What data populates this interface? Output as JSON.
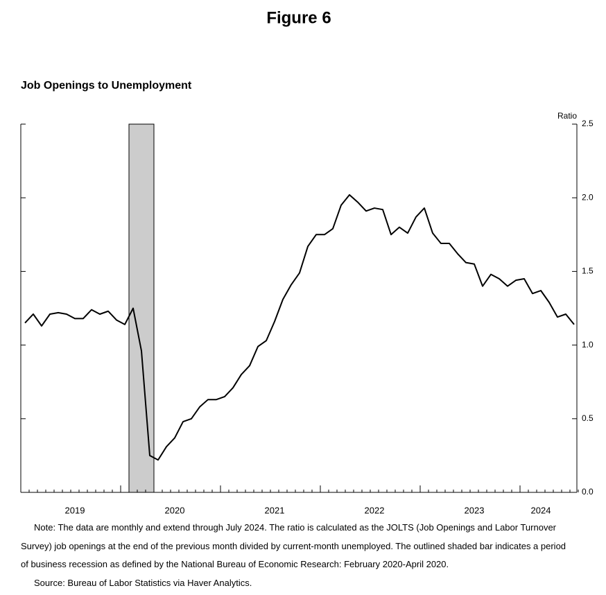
{
  "figure_label": "Figure 6",
  "chart_data": {
    "type": "line",
    "title": "Job Openings to Unemployment",
    "y_axis_label": "Ratio",
    "categories": [
      null,
      null,
      null,
      null,
      null,
      null,
      "2019",
      null,
      null,
      null,
      null,
      null,
      null,
      null,
      null,
      null,
      null,
      null,
      "2020",
      null,
      null,
      null,
      null,
      null,
      null,
      null,
      null,
      null,
      null,
      null,
      "2021",
      null,
      null,
      null,
      null,
      null,
      null,
      null,
      null,
      null,
      null,
      null,
      "2022",
      null,
      null,
      null,
      null,
      null,
      null,
      null,
      null,
      null,
      null,
      null,
      "2023",
      null,
      null,
      null,
      null,
      null,
      null,
      null,
      "2024",
      null,
      null,
      null,
      null
    ],
    "series": [
      {
        "color": "#000000",
        "values": [
          1.15,
          1.21,
          1.13,
          1.21,
          1.22,
          1.21,
          1.18,
          1.18,
          1.24,
          1.21,
          1.23,
          1.17,
          1.14,
          1.25,
          0.96,
          0.25,
          0.22,
          0.31,
          0.37,
          0.48,
          0.5,
          0.58,
          0.63,
          0.63,
          0.65,
          0.71,
          0.8,
          0.86,
          0.99,
          1.03,
          1.16,
          1.31,
          1.41,
          1.49,
          1.67,
          1.75,
          1.75,
          1.79,
          1.95,
          2.02,
          1.97,
          1.91,
          1.93,
          1.92,
          1.75,
          1.8,
          1.76,
          1.87,
          1.93,
          1.76,
          1.69,
          1.69,
          1.62,
          1.56,
          1.55,
          1.4,
          1.48,
          1.45,
          1.4,
          1.44,
          1.45,
          1.35,
          1.37,
          1.29,
          1.19,
          1.21,
          1.14
        ]
      }
    ],
    "shaded_ranges": [
      {
        "from": 13,
        "to": 15,
        "color": "#cccccc"
      }
    ],
    "ylim": [
      0,
      2.5
    ],
    "yticks": [
      {
        "value": 0,
        "label": "0.0"
      },
      0.5,
      {
        "value": 1,
        "label": "1.0"
      },
      1.5,
      {
        "value": 2,
        "label": "2.0"
      },
      2.5
    ],
    "y_axis_side": "right"
  },
  "notes": [
    "Note: The data are monthly and extend through July 2024. The ratio is calculated as the JOLTS (Job Openings and Labor Turnover Survey) job openings at the end of the previous month divided by current-month unemployed. The outlined shaded bar indicates a period of business recession as defined by the National Bureau of Economic Research: February 2020-April 2020.",
    "Source: Bureau of Labor Statistics via Haver Analytics."
  ]
}
